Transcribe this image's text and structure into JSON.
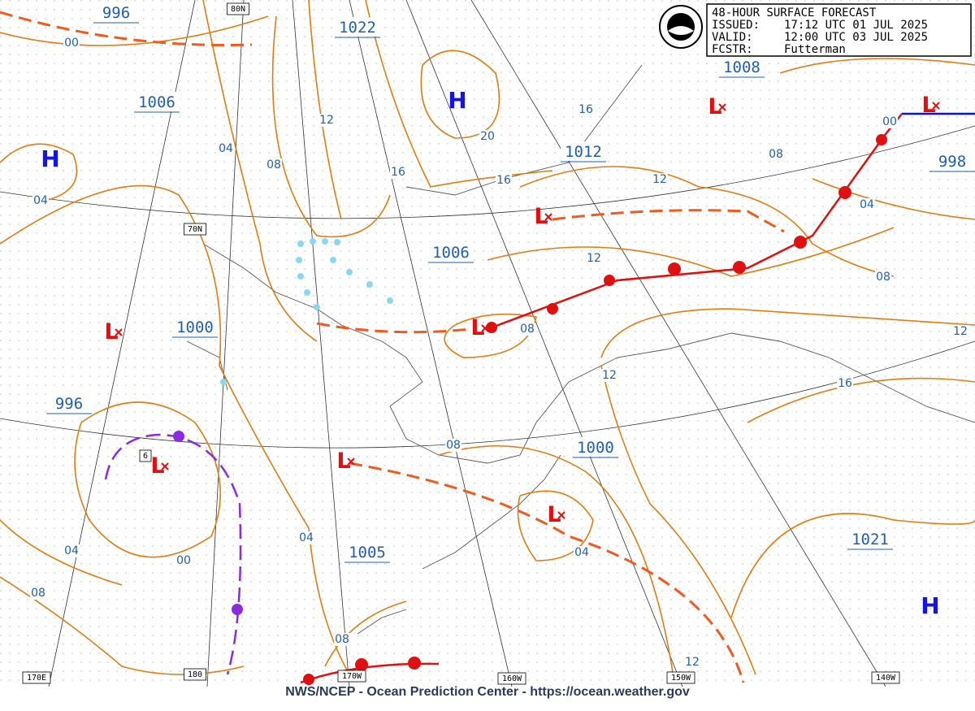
{
  "header": {
    "title": "48-HOUR SURFACE FORECAST",
    "rows": [
      {
        "label": "ISSUED:",
        "value": "17:12 UTC 01 JUL 2025"
      },
      {
        "label": "VALID:",
        "value": "12:00 UTC 03 JUL 2025"
      },
      {
        "label": "FCSTR:",
        "value": "Futterman"
      }
    ]
  },
  "highs": [
    "H",
    "H",
    "H"
  ],
  "lows": [
    "L",
    "L",
    "L",
    "L",
    "L",
    "L",
    "L",
    "L"
  ],
  "pressure_labels": [
    "996",
    "1022",
    "1006",
    "1012",
    "1008",
    "998",
    "1006",
    "1000",
    "996",
    "1000",
    "1005",
    "1021"
  ],
  "isobar_labels": [
    "00",
    "04",
    "08",
    "12",
    "16",
    "20",
    "16",
    "16",
    "04",
    "08",
    "12",
    "04",
    "00",
    "12",
    "08",
    "08",
    "12",
    "12",
    "16",
    "08",
    "04",
    "04",
    "00",
    "04",
    "08",
    "08",
    "12"
  ],
  "graticule_labels": [
    "80N",
    "70N",
    "6",
    "170E",
    "180",
    "170W",
    "160W",
    "150W",
    "140W"
  ],
  "footer": "NWS/NCEP - Ocean Prediction Center - https://ocean.weather.gov"
}
